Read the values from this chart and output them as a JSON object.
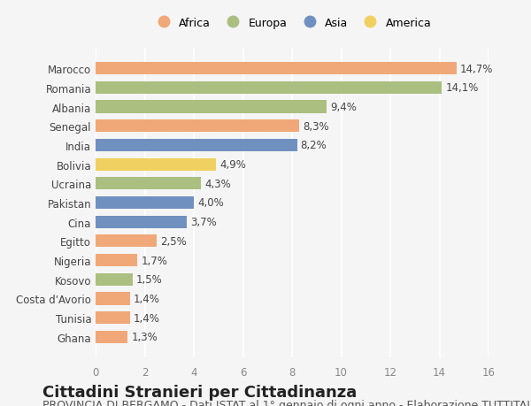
{
  "countries": [
    "Marocco",
    "Romania",
    "Albania",
    "Senegal",
    "India",
    "Bolivia",
    "Ucraina",
    "Pakistan",
    "Cina",
    "Egitto",
    "Nigeria",
    "Kosovo",
    "Costa d'Avorio",
    "Tunisia",
    "Ghana"
  ],
  "values": [
    14.7,
    14.1,
    9.4,
    8.3,
    8.2,
    4.9,
    4.3,
    4.0,
    3.7,
    2.5,
    1.7,
    1.5,
    1.4,
    1.4,
    1.3
  ],
  "labels": [
    "14,7%",
    "14,1%",
    "9,4%",
    "8,3%",
    "8,2%",
    "4,9%",
    "4,3%",
    "4,0%",
    "3,7%",
    "2,5%",
    "1,7%",
    "1,5%",
    "1,4%",
    "1,4%",
    "1,3%"
  ],
  "continents": [
    "Africa",
    "Europa",
    "Europa",
    "Africa",
    "Asia",
    "America",
    "Europa",
    "Asia",
    "Asia",
    "Africa",
    "Africa",
    "Europa",
    "Africa",
    "Africa",
    "Africa"
  ],
  "continent_colors": {
    "Africa": "#F0A878",
    "Europa": "#AABF80",
    "Asia": "#7090C0",
    "America": "#F0D060"
  },
  "legend_order": [
    "Africa",
    "Europa",
    "Asia",
    "America"
  ],
  "xlim": [
    0,
    16
  ],
  "xticks": [
    0,
    2,
    4,
    6,
    8,
    10,
    12,
    14,
    16
  ],
  "title": "Cittadini Stranieri per Cittadinanza",
  "subtitle": "PROVINCIA DI BERGAMO - Dati ISTAT al 1° gennaio di ogni anno - Elaborazione TUTTITALIA.IT",
  "bg_color": "#f5f5f5",
  "grid_color": "#ffffff",
  "bar_height": 0.65,
  "title_fontsize": 13,
  "subtitle_fontsize": 9,
  "label_fontsize": 8.5
}
